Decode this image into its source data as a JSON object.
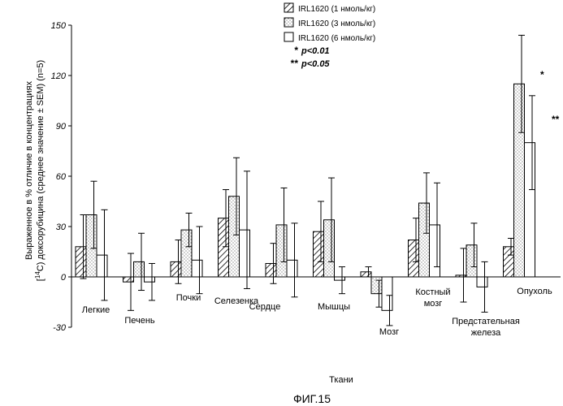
{
  "chart_data": {
    "type": "bar",
    "title": "",
    "xlabel": "Ткани",
    "ylabel_line1": "Выраженное в % отличие в концентрациях",
    "ylabel_line2_post": "C) доксорубицина (среднее значение ± SEM) (n=5)",
    "ylabel_line2_pre": "[",
    "ylabel_sup": "14",
    "ylim": [
      -30,
      150
    ],
    "yticks": [
      "-30",
      "0",
      "30",
      "60",
      "90",
      "120",
      "150"
    ],
    "ytick_values": [
      -30,
      0,
      30,
      60,
      90,
      120,
      150
    ],
    "grid": false,
    "legend_position": "top-right",
    "categories": [
      [
        "Легкие"
      ],
      [
        "Печень"
      ],
      [
        "Почки"
      ],
      [
        "Селезенка"
      ],
      [
        "Сердце"
      ],
      [
        "Мышцы"
      ],
      [
        "Мозг"
      ],
      [
        "Костный",
        "мозг"
      ],
      [
        "Предстательная",
        "железа"
      ],
      [
        "Опухоль"
      ]
    ],
    "series": [
      {
        "name": "IRL1620 (1 нмоль/кг)",
        "pattern": "hatch",
        "values": [
          18,
          -3,
          9,
          35,
          8,
          27,
          3,
          22,
          1,
          18
        ],
        "errors": [
          19,
          17,
          13,
          17,
          12,
          18,
          3,
          13,
          16,
          5
        ]
      },
      {
        "name": "IRL1620 (3 нмоль/кг)",
        "pattern": "dots",
        "values": [
          37,
          9,
          28,
          48,
          31,
          34,
          -10,
          44,
          19,
          115
        ],
        "errors": [
          20,
          17,
          10,
          23,
          22,
          25,
          8,
          18,
          13,
          29
        ]
      },
      {
        "name": "IRL1620 (6 нмоль/кг)",
        "pattern": "open",
        "values": [
          13,
          -3,
          10,
          28,
          10,
          -2,
          -20,
          31,
          -6,
          80
        ],
        "errors": [
          27,
          11,
          20,
          35,
          22,
          8,
          9,
          25,
          15,
          28
        ]
      }
    ],
    "significance": [
      {
        "marker": "*",
        "label": "p<0.01"
      },
      {
        "marker": "**",
        "label": "p<0.05"
      }
    ],
    "annotations": [
      {
        "text": "*",
        "category": 9,
        "series": 1
      },
      {
        "text": "**",
        "category": 9,
        "series": 2
      }
    ]
  },
  "figure_caption": "ФИГ.15"
}
